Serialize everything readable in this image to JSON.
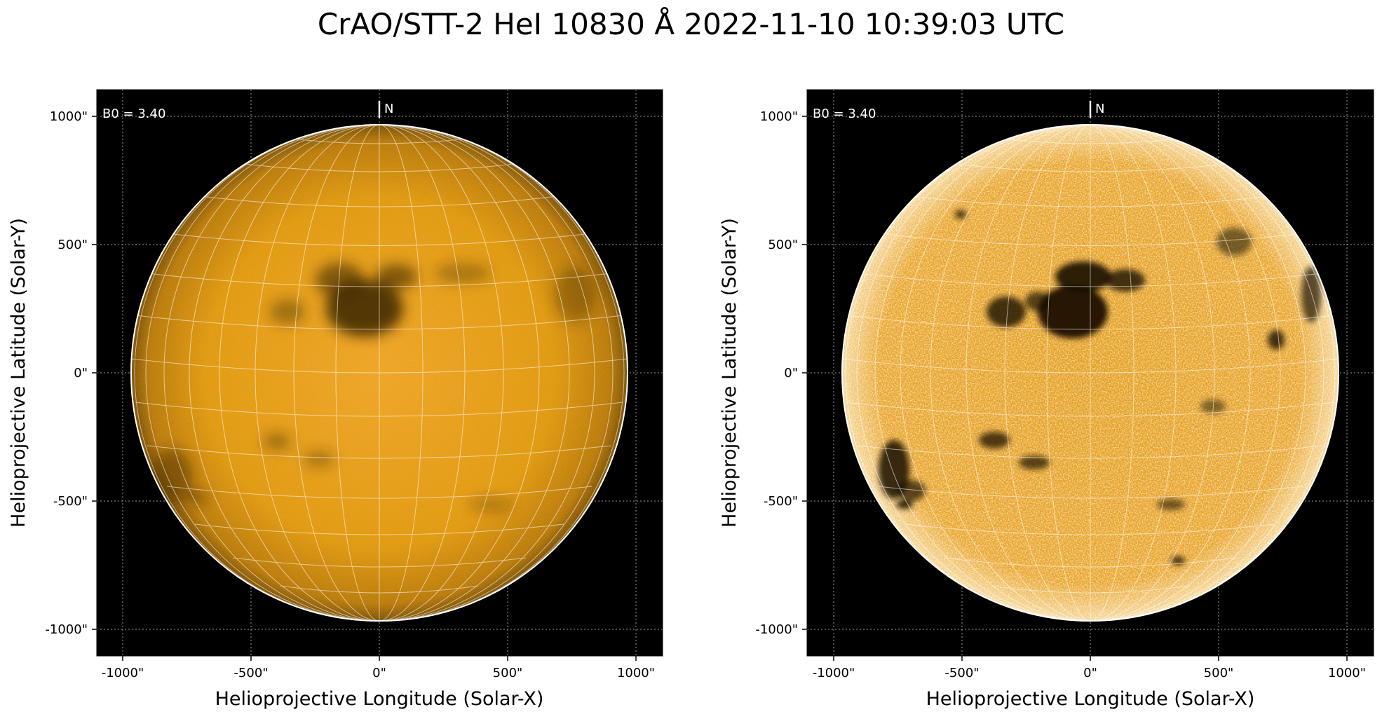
{
  "figure": {
    "title": "CrAO/STT-2 HeI 10830 Å 2022-11-10 10:39:03 UTC"
  },
  "panels": [
    {
      "id": "left",
      "xlabel": "Helioprojective Longitude (Solar-X)",
      "ylabel": "Helioprojective Latitude (Solar-Y)",
      "b0_label": "B0 = 3.40",
      "north_label": "N",
      "xticks": [
        "-1000\"",
        "-500\"",
        "0\"",
        "500\"",
        "1000\""
      ],
      "yticks": [
        "1000\"",
        "500\"",
        "0\"",
        "-500\"",
        "-1000\""
      ],
      "disk_color": "#e0980c",
      "disk_edge_color": "#7a4f04",
      "features": "dark filaments and regions, lower contrast"
    },
    {
      "id": "right",
      "xlabel": "Helioprojective Longitude (Solar-X)",
      "ylabel": "Helioprojective Latitude (Solar-Y)",
      "b0_label": "B0 = 3.40",
      "north_label": "N",
      "xticks": [
        "-1000\"",
        "-500\"",
        "0\"",
        "500\"",
        "1000\""
      ],
      "yticks": [
        "1000\"",
        "500\"",
        "0\"",
        "-500\"",
        "-1000\""
      ],
      "disk_color": "#e39d1c",
      "disk_edge_color": "#fff3d6",
      "features": "high contrast, bright network, dark active regions"
    }
  ],
  "colors": {
    "background": "#000000",
    "limb": "#ffffff",
    "grid": "#ffffff",
    "frame_grid": "#9a9a9a"
  }
}
